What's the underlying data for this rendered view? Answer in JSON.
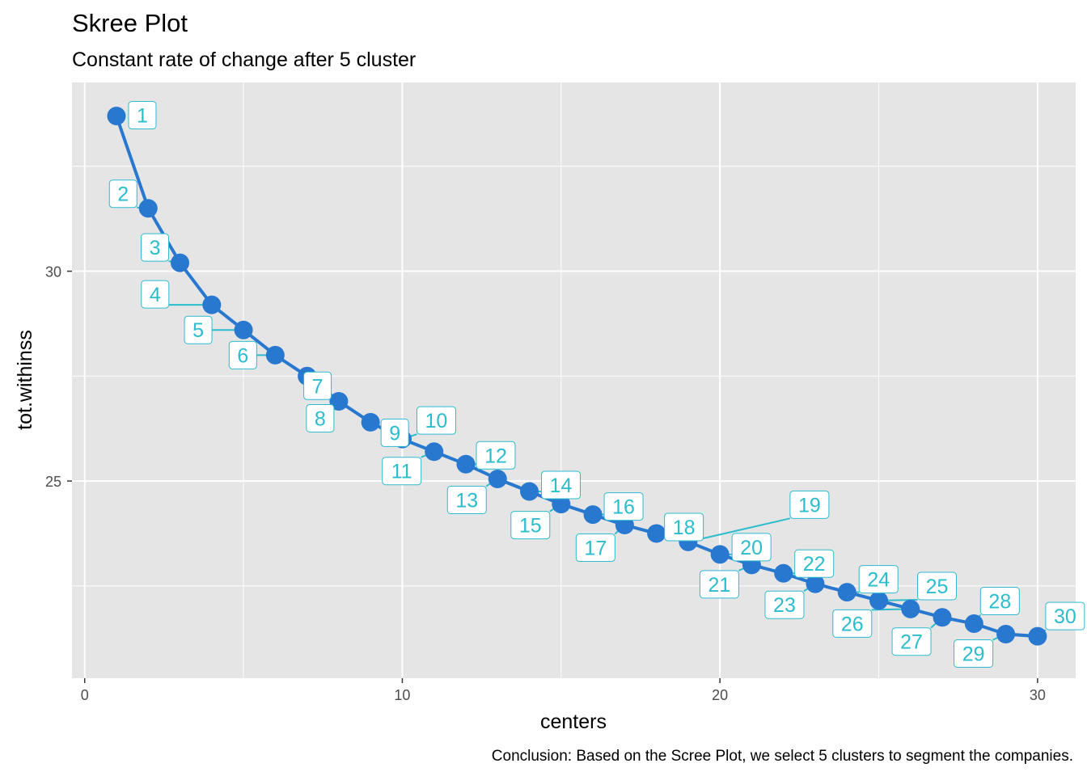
{
  "chart_data": {
    "type": "line",
    "title": "Skree Plot",
    "subtitle": "Constant rate of change after 5 cluster",
    "xlabel": "centers",
    "ylabel": "tot.withinss",
    "caption": "Conclusion: Based on the Scree Plot, we select 5 clusters to segment the companies.",
    "xlim": [
      -0.4,
      31.2
    ],
    "ylim": [
      20.3,
      34.5
    ],
    "x_ticks": [
      0,
      10,
      20,
      30
    ],
    "y_ticks": [
      25,
      30
    ],
    "x_minor": [
      5,
      15,
      25
    ],
    "y_minor": [
      22.5,
      27.5,
      32.5
    ],
    "grid": true,
    "x": [
      1,
      2,
      3,
      4,
      5,
      6,
      7,
      8,
      9,
      10,
      11,
      12,
      13,
      14,
      15,
      16,
      17,
      18,
      19,
      20,
      21,
      22,
      23,
      24,
      25,
      26,
      27,
      28,
      29,
      30
    ],
    "values": [
      33.7,
      31.5,
      30.2,
      29.2,
      28.6,
      28.0,
      27.5,
      26.9,
      26.4,
      26.0,
      25.7,
      25.4,
      25.05,
      24.75,
      24.45,
      24.2,
      23.95,
      23.75,
      23.55,
      23.25,
      23.0,
      22.8,
      22.55,
      22.35,
      22.15,
      21.95,
      21.75,
      21.6,
      21.35,
      21.3
    ],
    "labels": [
      "1",
      "2",
      "3",
      "4",
      "5",
      "6",
      "7",
      "8",
      "9",
      "10",
      "11",
      "12",
      "13",
      "14",
      "15",
      "16",
      "17",
      "18",
      "19",
      "20",
      "21",
      "22",
      "23",
      "24",
      "25",
      "26",
      "27",
      "28",
      "29",
      "30"
    ],
    "colors": {
      "line": "#2878d0",
      "label": "#2bbccd",
      "panel": "#e5e5e5",
      "grid": "#ffffff"
    }
  }
}
